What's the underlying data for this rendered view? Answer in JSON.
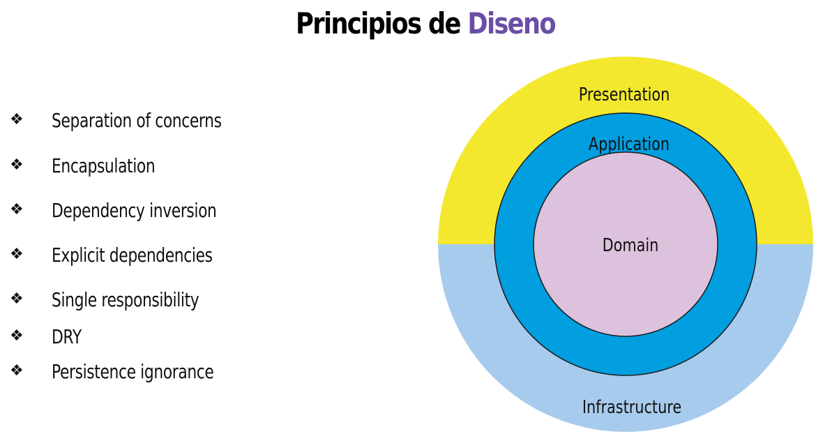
{
  "title": {
    "part1": "Principios de",
    "part2": "Diseno"
  },
  "principles": [
    "Separation of concerns",
    "Encapsulation",
    "Dependency inversion",
    "Explicit dependencies",
    "Single responsibility",
    "DRY",
    "Persistence ignorance"
  ],
  "diagram": {
    "outer_top_label": "Presentation",
    "outer_bottom_label": "Infrastructure",
    "middle_label": "Application",
    "inner_label": "Domain"
  },
  "colors": {
    "title_accent": "#6a4ea6",
    "presentation": "#f3e82e",
    "infrastructure": "#a7cbec",
    "application": "#019ee0",
    "domain": "#dcc2dc"
  },
  "bullet_glyph": "❖"
}
